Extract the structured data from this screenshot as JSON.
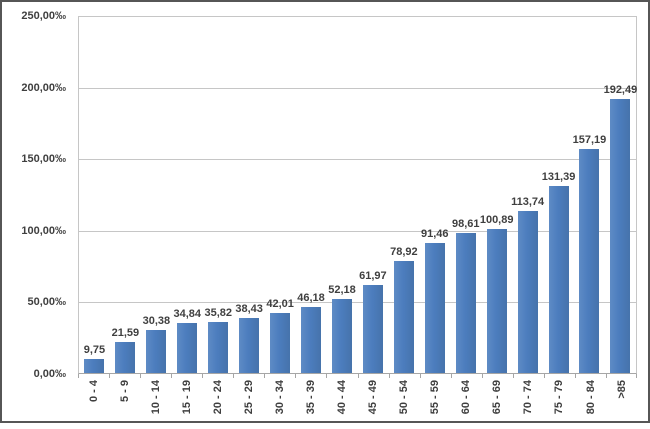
{
  "chart_data": {
    "type": "bar",
    "title": "",
    "categories": [
      "0 - 4",
      "5 - 9",
      "10 - 14",
      "15 - 19",
      "20 - 24",
      "25 - 29",
      "30 - 34",
      "35 - 39",
      "40 - 44",
      "45 - 49",
      "50 - 54",
      "55 - 59",
      "60 - 64",
      "65 - 69",
      "70 - 74",
      "75 - 79",
      "80 - 84",
      ">85"
    ],
    "values": [
      9.75,
      21.59,
      30.38,
      34.84,
      35.82,
      38.43,
      42.01,
      46.18,
      52.18,
      61.97,
      78.92,
      91.46,
      98.61,
      100.89,
      113.74,
      131.39,
      157.19,
      192.49
    ],
    "value_labels": [
      "9,75",
      "21,59",
      "30,38",
      "34,84",
      "35,82",
      "38,43",
      "42,01",
      "46,18",
      "52,18",
      "61,97",
      "78,92",
      "91,46",
      "98,61",
      "100,89",
      "113,74",
      "131,39",
      "157,19",
      "192,49"
    ],
    "xlabel": "",
    "ylabel": "",
    "ylim": [
      0,
      250
    ],
    "y_tick_values": [
      0,
      50,
      100,
      150,
      200,
      250
    ],
    "y_tick_labels": [
      "0,00‰",
      "50,00‰",
      "100,00‰",
      "150,00‰",
      "200,00‰",
      "250,00‰"
    ],
    "grid": true,
    "legend": false,
    "colors": {
      "bar": "#4C7DBE",
      "gridline": "#C6C6C6",
      "axis_line": "#A6A6A6",
      "plot_border": "#C6C6C6",
      "frame_border": "#565656",
      "label_text": "#3F3F3F"
    }
  }
}
